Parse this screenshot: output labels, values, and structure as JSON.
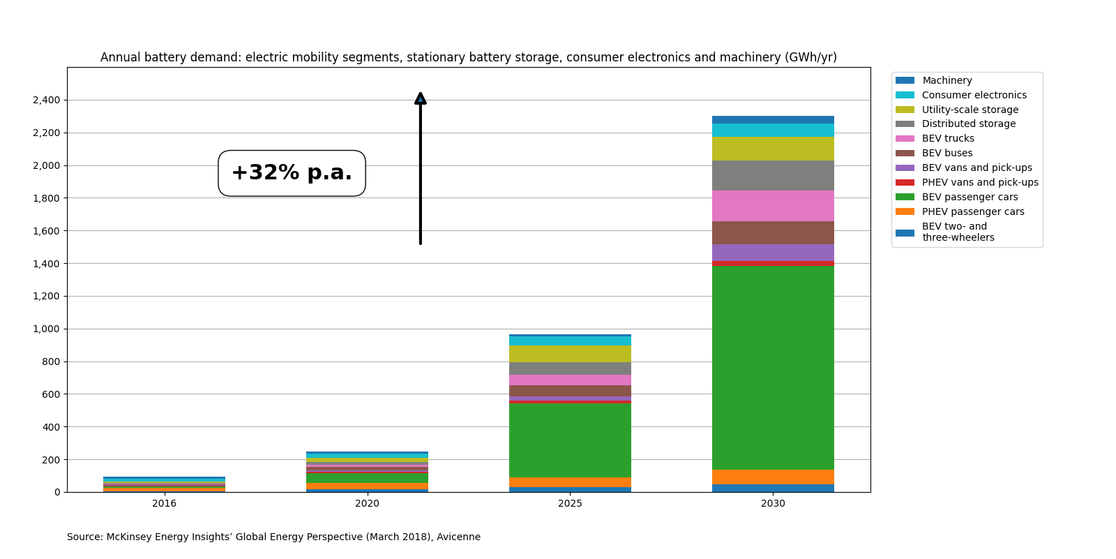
{
  "chart_data": {
    "type": "bar",
    "stacked": true,
    "title": "Annual battery demand: electric mobility segments, stationary battery storage, consumer electronics and machinery (GWh/yr)",
    "source": "Source: McKinsey Energy Insights’ Global Energy Perspective (March 2018), Avicenne",
    "annotation": "+32% p.a.",
    "categories": [
      "2016",
      "2020",
      "2025",
      "2030"
    ],
    "series": [
      {
        "name": "BEV two- and\nthree-wheelers",
        "values": [
          5,
          15,
          30,
          45
        ]
      },
      {
        "name": "PHEV passenger cars",
        "values": [
          20,
          40,
          60,
          90
        ]
      },
      {
        "name": "BEV passenger cars",
        "values": [
          10,
          60,
          450,
          1250
        ]
      },
      {
        "name": "PHEV vans and pick-ups",
        "values": [
          5,
          10,
          20,
          30
        ]
      },
      {
        "name": "BEV vans and pick-ups",
        "values": [
          3,
          8,
          25,
          100
        ]
      },
      {
        "name": "BEV buses",
        "values": [
          5,
          20,
          70,
          140
        ]
      },
      {
        "name": "BEV trucks",
        "values": [
          3,
          12,
          60,
          190
        ]
      },
      {
        "name": "Distributed storage",
        "values": [
          5,
          18,
          80,
          185
        ]
      },
      {
        "name": "Utility-scale storage",
        "values": [
          8,
          25,
          100,
          145
        ]
      },
      {
        "name": "Consumer electronics",
        "values": [
          18,
          28,
          55,
          80
        ]
      },
      {
        "name": "Machinery",
        "values": [
          10,
          12,
          15,
          47
        ]
      }
    ],
    "ylim": [
      0,
      2600
    ],
    "yticks": [
      0,
      200,
      400,
      600,
      800,
      {
        "value": 1000,
        "label": "1,000"
      },
      {
        "value": 1200,
        "label": "1,200"
      },
      {
        "value": 1400,
        "label": "1,400"
      },
      {
        "value": 1600,
        "label": "1,600"
      },
      {
        "value": 1800,
        "label": "1,800"
      },
      {
        "value": 2000,
        "label": "2,000"
      },
      {
        "value": 2200,
        "label": "2,200"
      },
      {
        "value": 2400,
        "label": "2,400"
      }
    ],
    "grid": true,
    "legend": "upper left"
  }
}
